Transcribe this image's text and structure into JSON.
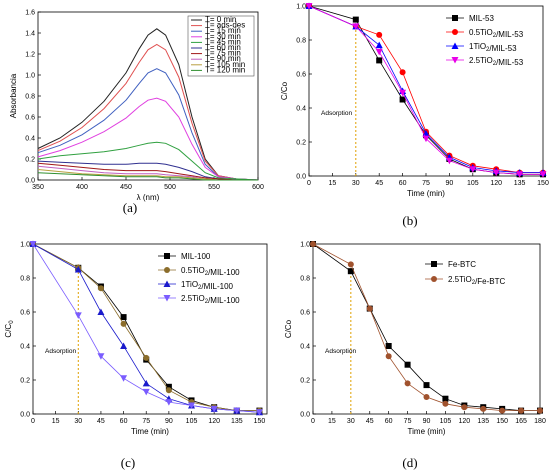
{
  "chart_data": [
    {
      "panel": "(a)",
      "type": "line",
      "xlabel": "λ (nm)",
      "ylabel": "Absorbancia",
      "xlim": [
        350,
        600
      ],
      "ylim": [
        0,
        1.6
      ],
      "xticks": [
        350,
        400,
        450,
        500,
        550,
        600
      ],
      "yticks": [
        0.0,
        0.2,
        0.4,
        0.6,
        0.8,
        1.0,
        1.2,
        1.4,
        1.6
      ],
      "legend_position": "top-right",
      "x": [
        350,
        375,
        400,
        425,
        450,
        465,
        475,
        485,
        495,
        510,
        525,
        540,
        555,
        575,
        600
      ],
      "series": [
        {
          "name": "T= 0 min",
          "color": "#222222",
          "values": [
            0.3,
            0.4,
            0.55,
            0.75,
            1.02,
            1.25,
            1.38,
            1.44,
            1.38,
            1.1,
            0.6,
            0.2,
            0.04,
            0.01,
            0.0
          ]
        },
        {
          "name": "T= ads-des",
          "color": "#e05050",
          "values": [
            0.28,
            0.37,
            0.5,
            0.68,
            0.92,
            1.12,
            1.24,
            1.29,
            1.24,
            0.98,
            0.54,
            0.18,
            0.04,
            0.01,
            0.0
          ]
        },
        {
          "name": "T= 15 min",
          "color": "#4060c0",
          "values": [
            0.26,
            0.33,
            0.43,
            0.57,
            0.76,
            0.92,
            1.02,
            1.06,
            1.02,
            0.81,
            0.45,
            0.15,
            0.03,
            0.01,
            0.0
          ]
        },
        {
          "name": "T= 30 min",
          "color": "#e040e0",
          "values": [
            0.22,
            0.28,
            0.36,
            0.46,
            0.59,
            0.7,
            0.76,
            0.78,
            0.75,
            0.6,
            0.34,
            0.12,
            0.03,
            0.01,
            0.0
          ]
        },
        {
          "name": "T= 45 min",
          "color": "#30a040",
          "values": [
            0.2,
            0.23,
            0.25,
            0.27,
            0.3,
            0.33,
            0.35,
            0.36,
            0.35,
            0.29,
            0.18,
            0.07,
            0.02,
            0.01,
            0.0
          ]
        },
        {
          "name": "T= 60 min",
          "color": "#303090",
          "values": [
            0.18,
            0.17,
            0.16,
            0.15,
            0.15,
            0.16,
            0.16,
            0.16,
            0.15,
            0.12,
            0.08,
            0.03,
            0.01,
            0.0,
            0.0
          ]
        },
        {
          "name": "T= 75 min",
          "color": "#a01818",
          "values": [
            0.16,
            0.14,
            0.12,
            0.1,
            0.09,
            0.09,
            0.09,
            0.09,
            0.08,
            0.06,
            0.04,
            0.02,
            0.01,
            0.0,
            0.0
          ]
        },
        {
          "name": "T= 90 min",
          "color": "#c060c0",
          "values": [
            0.13,
            0.11,
            0.09,
            0.07,
            0.06,
            0.06,
            0.06,
            0.06,
            0.05,
            0.04,
            0.03,
            0.01,
            0.0,
            0.0,
            0.0
          ]
        },
        {
          "name": "T= 105 min",
          "color": "#b8a040",
          "values": [
            0.1,
            0.08,
            0.06,
            0.05,
            0.04,
            0.04,
            0.04,
            0.04,
            0.03,
            0.03,
            0.02,
            0.01,
            0.0,
            0.0,
            0.0
          ]
        },
        {
          "name": "T= 120 min",
          "color": "#309030",
          "values": [
            0.07,
            0.06,
            0.05,
            0.04,
            0.03,
            0.03,
            0.03,
            0.03,
            0.02,
            0.02,
            0.01,
            0.0,
            0.0,
            0.0,
            0.0
          ]
        }
      ]
    },
    {
      "panel": "(b)",
      "type": "line",
      "xlabel": "Time (min)",
      "ylabel": "C/Co",
      "xlim": [
        0,
        150
      ],
      "ylim": [
        0,
        1.0
      ],
      "xticks": [
        0,
        15,
        30,
        45,
        60,
        75,
        90,
        105,
        120,
        135,
        150
      ],
      "yticks": [
        0.0,
        0.2,
        0.4,
        0.6,
        0.8,
        1.0
      ],
      "annotation": "Adsorption",
      "vline_x": 30,
      "legend_position": "top-right",
      "x": [
        0,
        30,
        45,
        60,
        75,
        90,
        105,
        120,
        135,
        150
      ],
      "series": [
        {
          "name": "MIL-53",
          "color": "#000000",
          "marker": "square",
          "values": [
            1.0,
            0.92,
            0.68,
            0.45,
            0.24,
            0.1,
            0.04,
            0.02,
            0.01,
            0.01
          ]
        },
        {
          "name": "0.5TiO2/MIL-53",
          "color": "#ff0000",
          "marker": "circle",
          "values": [
            1.0,
            0.88,
            0.83,
            0.61,
            0.26,
            0.12,
            0.06,
            0.04,
            0.02,
            0.02
          ]
        },
        {
          "name": "1TiO2/MIL-53",
          "color": "#0000ff",
          "marker": "triangle-up",
          "values": [
            1.0,
            0.88,
            0.77,
            0.5,
            0.25,
            0.11,
            0.05,
            0.03,
            0.02,
            0.02
          ]
        },
        {
          "name": "2.5TiO2/MIL-53",
          "color": "#e800e8",
          "marker": "triangle-down",
          "values": [
            1.0,
            0.88,
            0.73,
            0.49,
            0.22,
            0.09,
            0.04,
            0.02,
            0.01,
            0.01
          ]
        }
      ]
    },
    {
      "panel": "(c)",
      "type": "line",
      "xlabel": "Time (min)",
      "ylabel": "C/C0",
      "xlim": [
        0,
        155
      ],
      "ylim": [
        0,
        1.0
      ],
      "xticks": [
        0,
        15,
        30,
        45,
        60,
        75,
        90,
        105,
        120,
        135,
        150
      ],
      "yticks": [
        0.0,
        0.2,
        0.4,
        0.6,
        0.8,
        1.0
      ],
      "annotation": "Adsorption",
      "vline_x": 30,
      "legend_position": "top-right",
      "x": [
        0,
        30,
        45,
        60,
        75,
        90,
        105,
        120,
        135,
        150
      ],
      "series": [
        {
          "name": "MIL-100",
          "color": "#000000",
          "marker": "square",
          "values": [
            1.0,
            0.86,
            0.75,
            0.57,
            0.32,
            0.16,
            0.08,
            0.04,
            0.02,
            0.02
          ]
        },
        {
          "name": "0.5TiO2/MIL-100",
          "color": "#8b6d2b",
          "marker": "circle",
          "values": [
            1.0,
            0.86,
            0.74,
            0.53,
            0.33,
            0.14,
            0.07,
            0.04,
            0.02,
            0.02
          ]
        },
        {
          "name": "1TiO2/MIL-100",
          "color": "#1a1acc",
          "marker": "triangle-up",
          "values": [
            1.0,
            0.85,
            0.6,
            0.4,
            0.18,
            0.09,
            0.05,
            0.03,
            0.02,
            0.01
          ]
        },
        {
          "name": "2.5TiO2/MIL-100",
          "color": "#7a5cff",
          "marker": "triangle-down",
          "values": [
            1.0,
            0.58,
            0.34,
            0.21,
            0.13,
            0.07,
            0.05,
            0.03,
            0.02,
            0.01
          ]
        }
      ]
    },
    {
      "panel": "(d)",
      "type": "line",
      "xlabel": "Time (min)",
      "ylabel": "C/Co",
      "xlim": [
        0,
        180
      ],
      "ylim": [
        0,
        1.0
      ],
      "xticks": [
        0,
        15,
        30,
        45,
        60,
        75,
        90,
        105,
        120,
        135,
        150,
        165,
        180
      ],
      "yticks": [
        0.0,
        0.2,
        0.4,
        0.6,
        0.8,
        1.0
      ],
      "annotation": "Adsorption",
      "vline_x": 30,
      "legend_position": "top-right",
      "x": [
        0,
        30,
        45,
        60,
        75,
        90,
        105,
        120,
        135,
        150,
        165,
        180
      ],
      "series": [
        {
          "name": "Fe-BTC",
          "color": "#000000",
          "marker": "square",
          "values": [
            1.0,
            0.84,
            0.62,
            0.4,
            0.29,
            0.17,
            0.09,
            0.05,
            0.04,
            0.03,
            0.02,
            0.02
          ]
        },
        {
          "name": "2.5TiO2/Fe-BTC",
          "color": "#a0522d",
          "marker": "circle",
          "values": [
            1.0,
            0.88,
            0.62,
            0.34,
            0.18,
            0.1,
            0.06,
            0.04,
            0.03,
            0.02,
            0.02,
            0.02
          ]
        }
      ]
    }
  ]
}
